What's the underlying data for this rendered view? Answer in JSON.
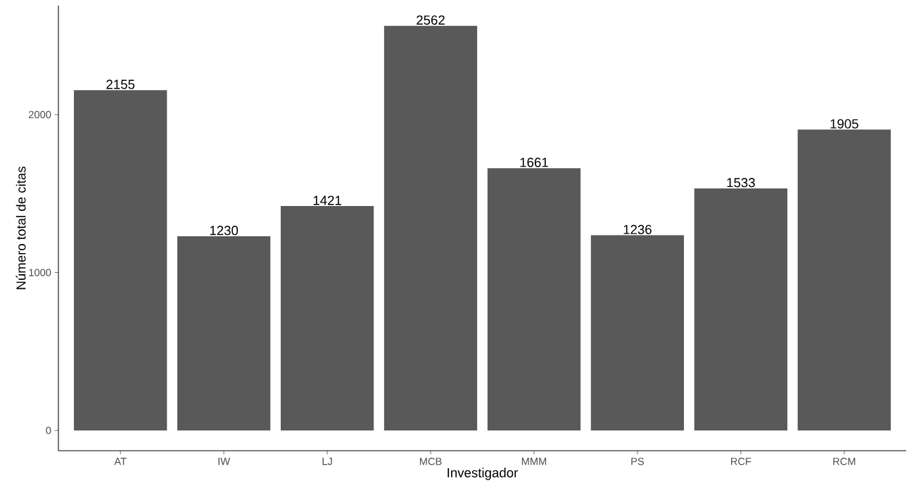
{
  "chart_data": {
    "type": "bar",
    "xlabel": "Investigador",
    "ylabel": "Número total de citas",
    "categories": [
      "AT",
      "IW",
      "LJ",
      "MCB",
      "MMM",
      "PS",
      "RCF",
      "RCM"
    ],
    "values": [
      2155,
      1230,
      1421,
      2562,
      1661,
      1236,
      1533,
      1905
    ],
    "color": "#595959",
    "ylim": [
      -128.1,
      2690.1
    ],
    "yticks": [
      0,
      1000,
      2000
    ],
    "grid": false,
    "data_labels": true
  }
}
